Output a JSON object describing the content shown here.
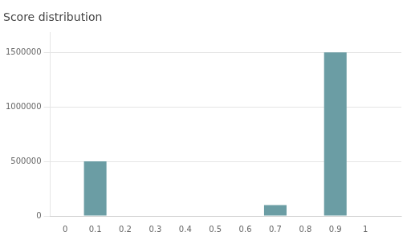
{
  "chart_data": {
    "type": "bar",
    "title": "Score distribution",
    "x": [
      0.0,
      0.1,
      0.2,
      0.3,
      0.4,
      0.5,
      0.6,
      0.7,
      0.8,
      0.9,
      1.0
    ],
    "values": [
      0,
      500000,
      0,
      0,
      0,
      0,
      0,
      100000,
      0,
      1500000,
      0
    ],
    "color": "#6b9da4",
    "xlim": [
      -0.05,
      1.12
    ],
    "xticks": [
      0.0,
      0.1,
      0.2,
      0.3,
      0.4,
      0.5,
      0.6,
      0.7,
      0.8,
      0.9,
      1.0
    ],
    "ylim": [
      0,
      1680000
    ],
    "yticks": [
      0,
      500000,
      1000000,
      1500000
    ],
    "grid": true
  }
}
